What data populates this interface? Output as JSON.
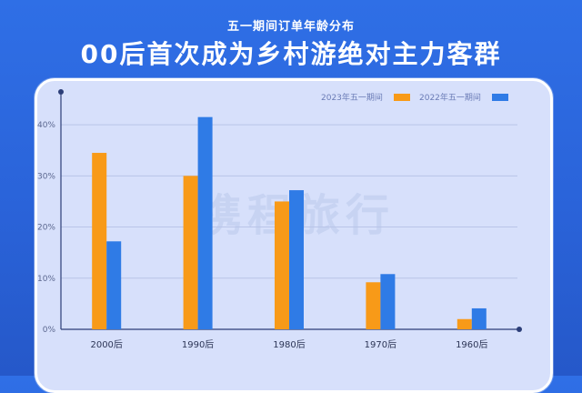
{
  "header": {
    "subtitle": "五一期间订单年龄分布",
    "title": "00后首次成为乡村游绝对主力客群"
  },
  "watermark_text": "携程旅行",
  "colors": {
    "background": "#2a63d9",
    "series_2023": "#f89a18",
    "series_2022": "#2f7be6"
  },
  "chart_data": {
    "type": "bar",
    "categories": [
      "2000后",
      "1990后",
      "1980后",
      "1970后",
      "1960后"
    ],
    "series": [
      {
        "name": "2023年五一期间",
        "values": [
          34.5,
          30.0,
          25.0,
          9.2,
          2.0
        ]
      },
      {
        "name": "2022年五一期间",
        "values": [
          17.2,
          41.5,
          27.2,
          10.8,
          4.1
        ]
      }
    ],
    "y_ticks": [
      "0%",
      "10%",
      "20%",
      "30%",
      "40%"
    ],
    "ylim": [
      0,
      45
    ],
    "grid": true,
    "legend_position": "top-right"
  }
}
